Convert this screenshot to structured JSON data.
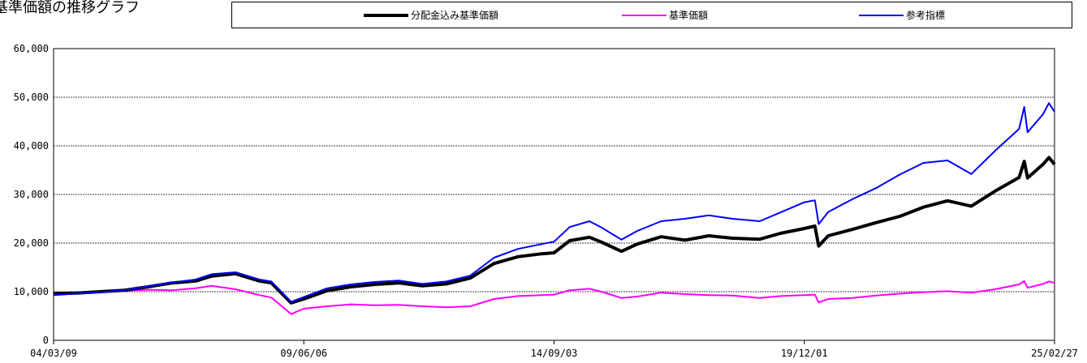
{
  "title": "基準価額の推移グラフ",
  "legend": {
    "items": [
      {
        "label": "分配金込み基準価額",
        "color": "#000000"
      },
      {
        "label": "基準価額",
        "color": "#ff00ff"
      },
      {
        "label": "参考指標",
        "color": "#0000ff"
      }
    ]
  },
  "chart_data": {
    "type": "line",
    "x_ticks": [
      "04/03/09",
      "09/06/06",
      "14/09/03",
      "19/12/01",
      "25/02/27"
    ],
    "y_ticks": [
      "0",
      "10,000",
      "20,000",
      "30,000",
      "40,000",
      "50,000",
      "60,000"
    ],
    "ylim": [
      0,
      60000
    ],
    "grid": true,
    "legend_position": "top",
    "series": [
      {
        "name": "分配金込み基準価額",
        "color": "#000000",
        "x": [
          "04/03/09",
          "04/09/01",
          "05/03/01",
          "05/09/01",
          "06/03/01",
          "06/09/01",
          "07/03/01",
          "07/07/01",
          "08/01/01",
          "08/07/01",
          "08/10/01",
          "09/03/01",
          "09/06/06",
          "09/12/01",
          "10/06/01",
          "10/12/01",
          "11/06/01",
          "11/12/01",
          "12/06/01",
          "12/12/01",
          "13/06/01",
          "13/12/01",
          "14/06/01",
          "14/09/03",
          "15/01/01",
          "15/06/01",
          "15/09/01",
          "16/02/01",
          "16/06/01",
          "16/12/01",
          "17/06/01",
          "17/12/01",
          "18/06/01",
          "18/12/25",
          "19/06/01",
          "19/12/01",
          "20/02/20",
          "20/03/20",
          "20/06/01",
          "20/12/01",
          "21/06/01",
          "21/12/01",
          "22/06/01",
          "22/12/01",
          "23/06/01",
          "23/12/01",
          "24/06/01",
          "24/07/10",
          "24/08/05",
          "24/12/01",
          "25/01/15",
          "25/02/27"
        ],
        "values": [
          9600,
          9700,
          10000,
          10300,
          11000,
          11800,
          12200,
          13200,
          13700,
          12200,
          11800,
          7700,
          8500,
          10200,
          11000,
          11500,
          11800,
          11200,
          11600,
          12800,
          15800,
          17200,
          17800,
          18000,
          20500,
          21200,
          20200,
          18300,
          19800,
          21300,
          20600,
          21500,
          21000,
          20800,
          22000,
          23000,
          23500,
          19400,
          21500,
          22800,
          24200,
          25500,
          27400,
          28700,
          27600,
          30700,
          33500,
          36800,
          33400,
          36200,
          37600,
          36200
        ]
      },
      {
        "name": "基準価額",
        "color": "#ff00ff",
        "x": [
          "04/03/09",
          "04/09/01",
          "05/03/01",
          "05/09/01",
          "06/03/01",
          "06/09/01",
          "07/03/01",
          "07/07/01",
          "08/01/01",
          "08/07/01",
          "08/10/01",
          "09/03/01",
          "09/06/06",
          "09/12/01",
          "10/06/01",
          "10/12/01",
          "11/06/01",
          "11/12/01",
          "12/06/01",
          "12/12/01",
          "13/06/01",
          "13/12/01",
          "14/06/01",
          "14/09/03",
          "15/01/01",
          "15/06/01",
          "15/09/01",
          "16/02/01",
          "16/06/01",
          "16/12/01",
          "17/06/01",
          "17/12/01",
          "18/06/01",
          "18/12/25",
          "19/06/01",
          "19/12/01",
          "20/02/20",
          "20/03/20",
          "20/06/01",
          "20/12/01",
          "21/06/01",
          "21/12/01",
          "22/06/01",
          "22/12/01",
          "23/06/01",
          "23/12/01",
          "24/06/01",
          "24/07/10",
          "24/08/05",
          "24/12/01",
          "25/01/15",
          "25/02/27"
        ],
        "values": [
          9800,
          9600,
          9900,
          10200,
          10400,
          10300,
          10700,
          11200,
          10500,
          9300,
          8800,
          5400,
          6500,
          7000,
          7400,
          7200,
          7300,
          7000,
          6800,
          7000,
          8500,
          9100,
          9300,
          9400,
          10300,
          10600,
          10000,
          8700,
          9000,
          9800,
          9500,
          9300,
          9200,
          8700,
          9100,
          9300,
          9400,
          7800,
          8500,
          8700,
          9200,
          9600,
          9900,
          10100,
          9800,
          10500,
          11500,
          12200,
          10800,
          11600,
          12100,
          11800
        ]
      },
      {
        "name": "参考指標",
        "color": "#0000ff",
        "x": [
          "04/03/09",
          "04/09/01",
          "05/03/01",
          "05/09/01",
          "06/03/01",
          "06/09/01",
          "07/03/01",
          "07/07/01",
          "08/01/01",
          "08/07/01",
          "08/10/01",
          "09/03/01",
          "09/06/06",
          "09/12/01",
          "10/06/01",
          "10/12/01",
          "11/06/01",
          "11/12/01",
          "12/06/01",
          "12/12/01",
          "13/06/01",
          "13/12/01",
          "14/06/01",
          "14/09/03",
          "15/01/01",
          "15/06/01",
          "15/09/01",
          "16/02/01",
          "16/06/01",
          "16/12/01",
          "17/06/01",
          "17/12/01",
          "18/06/01",
          "18/12/25",
          "19/06/01",
          "19/12/01",
          "20/02/20",
          "20/03/20",
          "20/06/01",
          "20/12/01",
          "21/06/01",
          "21/12/01",
          "22/06/01",
          "22/12/01",
          "23/06/01",
          "23/12/01",
          "24/06/01",
          "24/07/10",
          "24/08/05",
          "24/12/01",
          "25/01/15",
          "25/02/27"
        ],
        "values": [
          9300,
          9600,
          9900,
          10300,
          11100,
          11900,
          12500,
          13600,
          14000,
          12500,
          12100,
          7900,
          8900,
          10700,
          11500,
          12000,
          12300,
          11600,
          12100,
          13300,
          17000,
          18800,
          19800,
          20300,
          23300,
          24500,
          23200,
          20700,
          22500,
          24500,
          25000,
          25700,
          25000,
          24500,
          26300,
          28400,
          28800,
          23900,
          26400,
          29000,
          31300,
          34100,
          36500,
          37000,
          34200,
          39000,
          43500,
          48000,
          42800,
          46500,
          48800,
          47000
        ]
      }
    ]
  }
}
